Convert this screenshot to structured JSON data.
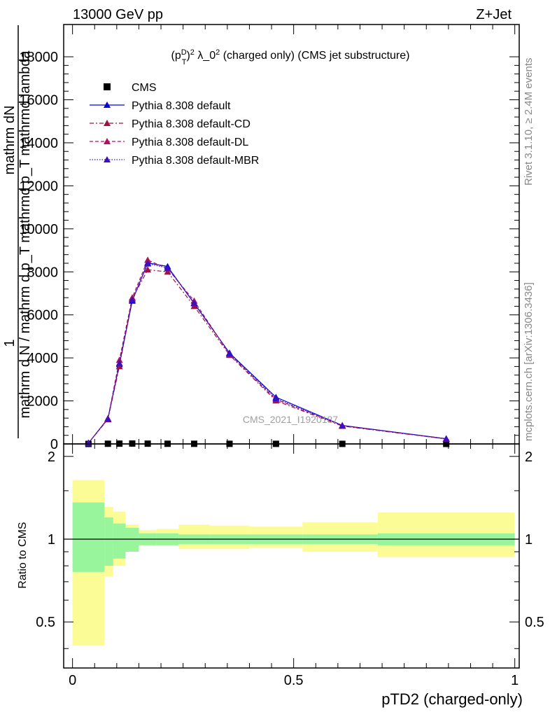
{
  "header": {
    "left": "13000 GeV pp",
    "right": "Z+Jet"
  },
  "side_texts": {
    "rivet": "Rivet 3.1.10, ≥ 2.4M events",
    "mcplots": "mcplots.cern.ch [arXiv:1306.3436]"
  },
  "watermark": "CMS_2021_I1920187",
  "chart_data": [
    {
      "type": "line",
      "title_parts": {
        "main": "(p",
        "sup1": "D",
        "sub": "T",
        "close": ")",
        "sup2": "2",
        "rest": " λ_0",
        "sup3": "2",
        "tail": " (charged only) (CMS jet substructure)"
      },
      "ylabel_top_lines": [
        "1",
        "mathrm dN"
      ],
      "ylabel_bottom": "mathrm d N / mathrm d p_T mathrmd p_T mathrmd lambda",
      "xlim": [
        -0.02,
        1.01
      ],
      "ylim": [
        0,
        19500
      ],
      "y_ticks": [
        0,
        2000,
        4000,
        6000,
        8000,
        10000,
        12000,
        14000,
        16000,
        18000
      ],
      "y_tick_labels_shown": [
        "0",
        "2000",
        "4000",
        "6000",
        "8000",
        "10000",
        "12000",
        "14000",
        "16000",
        "18000"
      ],
      "legend_position": "top-left",
      "x": [
        0.036,
        0.08,
        0.106,
        0.135,
        0.17,
        0.215,
        0.275,
        0.355,
        0.46,
        0.61,
        0.845
      ],
      "series": [
        {
          "name": "CMS",
          "color": "#000000",
          "style": "markers",
          "values": [
            0,
            8,
            13,
            18,
            12,
            8,
            6,
            5,
            4,
            3,
            1
          ]
        },
        {
          "name": "Pythia 8.308 default",
          "color": "#0000dd",
          "style": "solid",
          "values": [
            40,
            1180,
            3700,
            6650,
            8420,
            8250,
            6530,
            4230,
            2170,
            860,
            240
          ]
        },
        {
          "name": "Pythia 8.308 default-CD",
          "color": "#a01040",
          "style": "dashdot",
          "values": [
            45,
            1140,
            3600,
            6750,
            8100,
            8000,
            6400,
            4130,
            2010,
            830,
            230
          ]
        },
        {
          "name": "Pythia 8.308 default-DL",
          "color": "#b01060",
          "style": "dashed",
          "values": [
            45,
            1180,
            3900,
            6800,
            8550,
            8150,
            6650,
            4170,
            2070,
            850,
            230
          ]
        },
        {
          "name": "Pythia 8.308 default-MBR",
          "color": "#3a10c0",
          "style": "dotted",
          "values": [
            40,
            1160,
            3750,
            6700,
            8380,
            8180,
            6560,
            4200,
            2110,
            850,
            240
          ]
        }
      ]
    },
    {
      "type": "area",
      "ylabel": "Ratio to CMS",
      "xlabel": "pTD2 (charged-only)",
      "xlim": [
        -0.02,
        1.01
      ],
      "ylim": [
        0.34,
        2.22
      ],
      "x_ticks": [
        0,
        0.5,
        1
      ],
      "x_tick_labels": [
        "0",
        "0.5",
        "1"
      ],
      "y_ticks": [
        0.5,
        1,
        2
      ],
      "y_tick_labels": [
        "0.5",
        "1",
        "2"
      ],
      "bin_edges": [
        0.0,
        0.072,
        0.092,
        0.12,
        0.15,
        0.19,
        0.24,
        0.31,
        0.4,
        0.52,
        0.69,
        1.0
      ],
      "inner_band": {
        "name": "stat",
        "color": "#98f59c",
        "low": [
          0.76,
          0.8,
          0.85,
          0.9,
          0.95,
          0.95,
          0.96,
          0.96,
          0.96,
          0.96,
          0.95
        ],
        "high": [
          1.36,
          1.2,
          1.14,
          1.1,
          1.05,
          1.05,
          1.04,
          1.04,
          1.04,
          1.04,
          1.05
        ]
      },
      "outer_band": {
        "name": "stat+syst",
        "color": "#fcfc96",
        "low": [
          0.41,
          0.73,
          0.8,
          0.9,
          0.95,
          0.95,
          0.92,
          0.92,
          0.93,
          0.9,
          0.86
        ],
        "high": [
          1.64,
          1.31,
          1.26,
          1.13,
          1.08,
          1.09,
          1.13,
          1.12,
          1.11,
          1.15,
          1.25
        ]
      }
    }
  ]
}
